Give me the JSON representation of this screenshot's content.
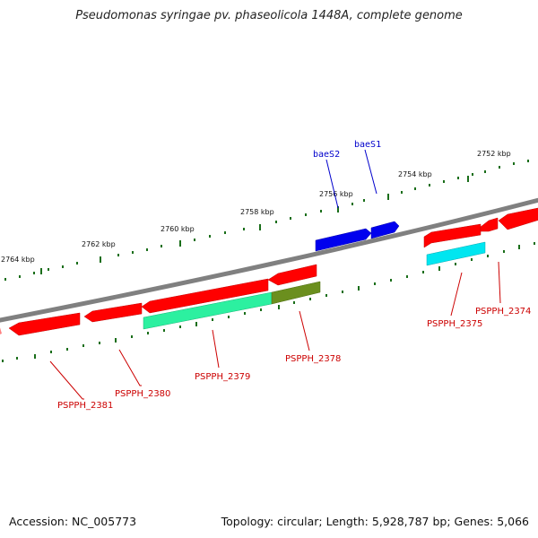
{
  "title": "Pseudomonas syringae pv. phaseolicola 1448A, complete genome",
  "footer": {
    "accession": "Accession: NC_005773",
    "info": "Topology: circular; Length: 5,928,787 bp; Genes: 5,066"
  },
  "colors": {
    "backbone": "#808080",
    "kbp_tick": "#1a6e1a",
    "gene_red": "#ff0000",
    "gene_blue": "#0000ee",
    "gene_green": "#2cf0a0",
    "gene_olive": "#6b8f1e",
    "gene_cyan": "#00e6f0",
    "label_red": "#cc0000",
    "label_blue": "#0000cc"
  },
  "kbp_markers": [
    {
      "label": "2764 kbp"
    },
    {
      "label": "2762 kbp"
    },
    {
      "label": "2760 kbp"
    },
    {
      "label": "2758 kbp"
    },
    {
      "label": "2756 kbp"
    },
    {
      "label": "2754 kbp"
    },
    {
      "label": "2752 kbp"
    }
  ],
  "gene_labels": [
    {
      "name": "PSPPH_2381"
    },
    {
      "name": "PSPPH_2380"
    },
    {
      "name": "PSPPH_2379"
    },
    {
      "name": "PSPPH_2378"
    },
    {
      "name": "PSPPH_2375"
    },
    {
      "name": "PSPPH_2374"
    },
    {
      "name": "baeS2"
    },
    {
      "name": "baeS1"
    }
  ]
}
